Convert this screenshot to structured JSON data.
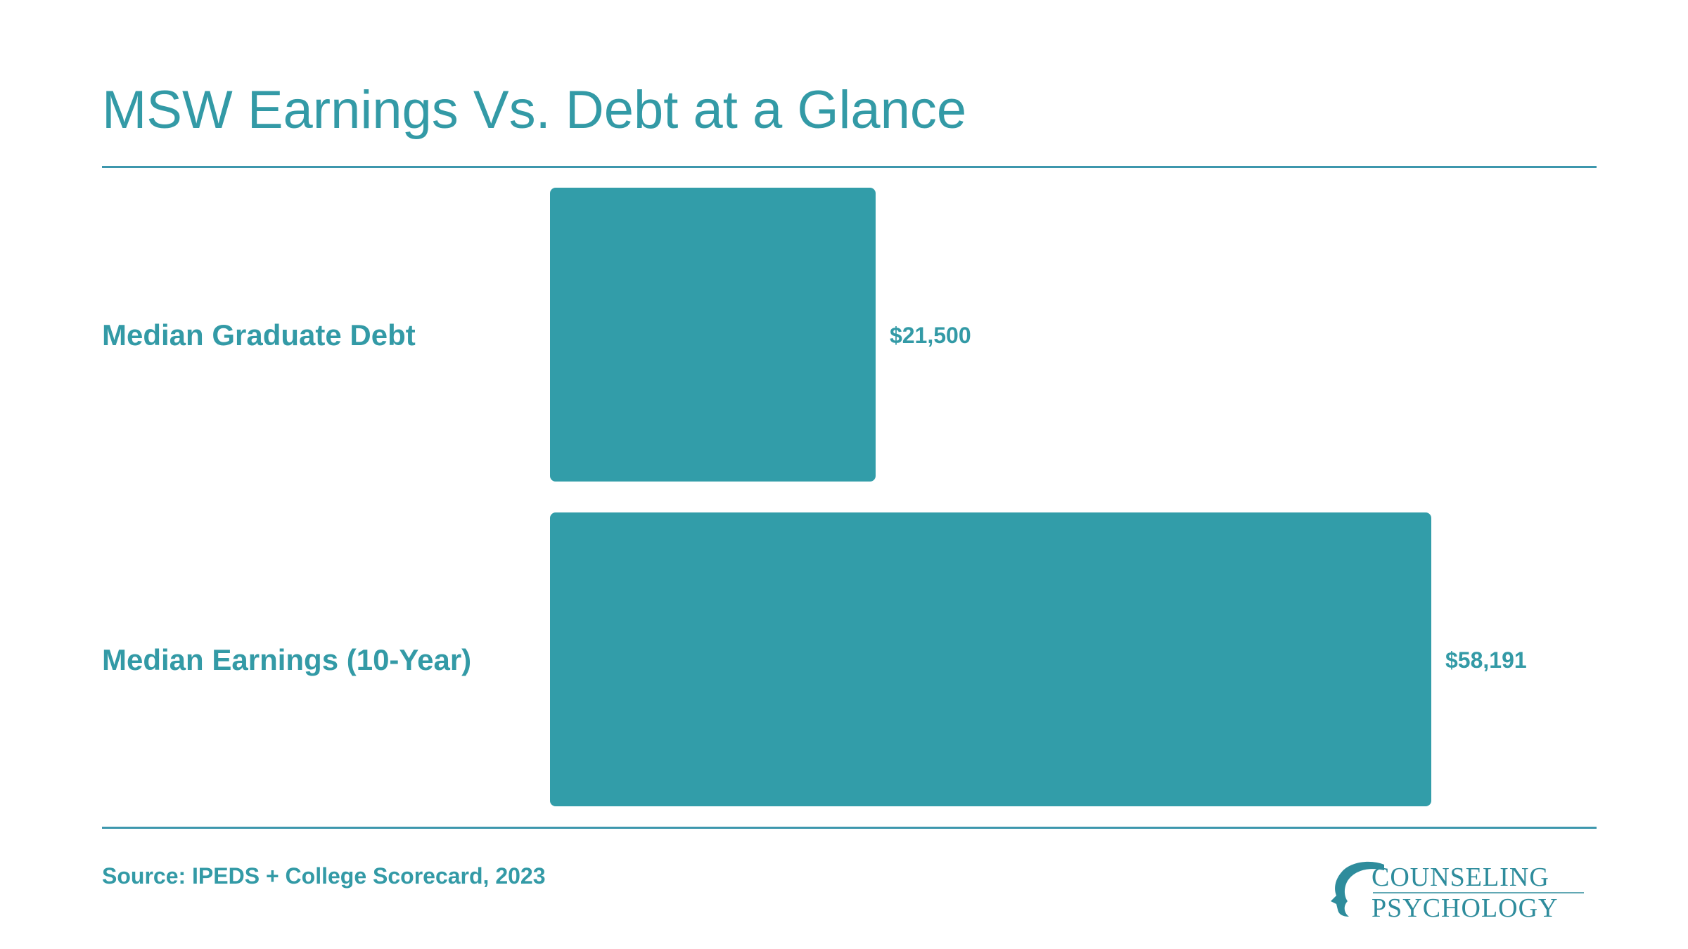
{
  "header": {
    "title": "MSW Earnings Vs. Debt at a Glance"
  },
  "chart_data": {
    "type": "bar",
    "orientation": "horizontal",
    "categories": [
      "Median Graduate Debt",
      "Median Earnings (10-Year)"
    ],
    "values": [
      21500,
      58191
    ],
    "value_labels": [
      "$21,500",
      "$58,191"
    ],
    "xlim": [
      0,
      58191
    ],
    "grid": false,
    "legend": "none"
  },
  "footer": {
    "source": "Source: IPEDS + College Scorecard, 2023"
  },
  "logo": {
    "line1": "COUNSELING",
    "line2": "PSYCHOLOGY"
  },
  "colors": {
    "accent": "#339aa6",
    "bar": "#329da9",
    "rule": "#3d97ad"
  }
}
